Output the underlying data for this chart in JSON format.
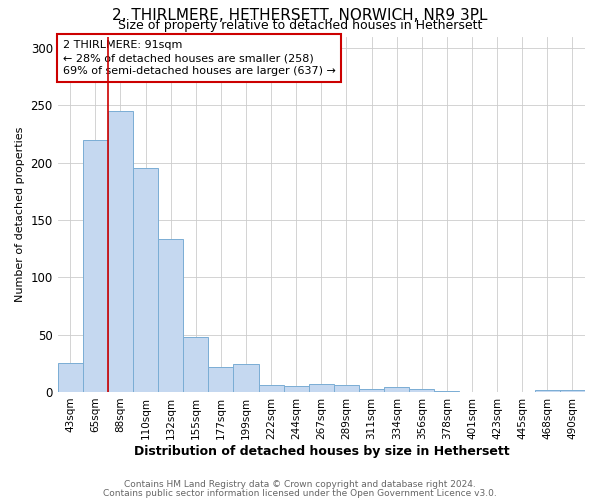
{
  "title": "2, THIRLMERE, HETHERSETT, NORWICH, NR9 3PL",
  "subtitle": "Size of property relative to detached houses in Hethersett",
  "xlabel": "Distribution of detached houses by size in Hethersett",
  "ylabel": "Number of detached properties",
  "footnote1": "Contains HM Land Registry data © Crown copyright and database right 2024.",
  "footnote2": "Contains public sector information licensed under the Open Government Licence v3.0.",
  "bar_labels": [
    "43sqm",
    "65sqm",
    "88sqm",
    "110sqm",
    "132sqm",
    "155sqm",
    "177sqm",
    "199sqm",
    "222sqm",
    "244sqm",
    "267sqm",
    "289sqm",
    "311sqm",
    "334sqm",
    "356sqm",
    "378sqm",
    "401sqm",
    "423sqm",
    "445sqm",
    "468sqm",
    "490sqm"
  ],
  "bar_values": [
    25,
    220,
    245,
    195,
    133,
    48,
    22,
    24,
    6,
    5,
    7,
    6,
    3,
    4,
    3,
    1,
    0,
    0,
    0,
    2,
    2
  ],
  "bar_color": "#c5d8f0",
  "bar_edge_color": "#7aadd4",
  "red_line_index": 2,
  "annotation_line1": "2 THIRLMERE: 91sqm",
  "annotation_line2": "← 28% of detached houses are smaller (258)",
  "annotation_line3": "69% of semi-detached houses are larger (637) →",
  "annotation_box_facecolor": "#ffffff",
  "annotation_box_edgecolor": "#cc0000",
  "red_line_color": "#cc0000",
  "ylim": [
    0,
    310
  ],
  "yticks": [
    0,
    50,
    100,
    150,
    200,
    250,
    300
  ],
  "grid_color": "#cccccc",
  "bg_color": "#ffffff",
  "title_fontsize": 11,
  "subtitle_fontsize": 9,
  "ylabel_fontsize": 8,
  "xlabel_fontsize": 9,
  "footnote_fontsize": 6.5,
  "footnote_color": "#666666"
}
